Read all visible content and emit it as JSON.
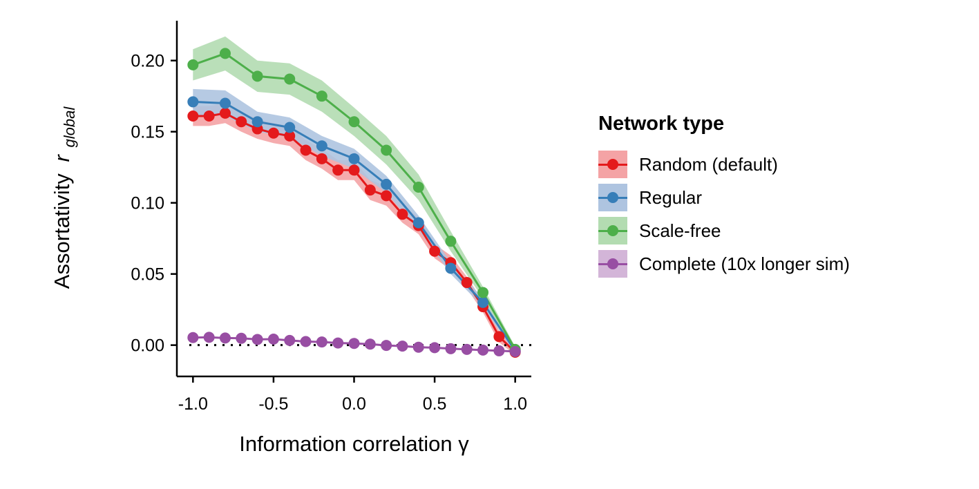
{
  "chart_data": {
    "type": "line",
    "xlabel": "Information correlation γ",
    "ylabel": "Assortativity",
    "ylabel_symbol": "r",
    "ylabel_subscript": "global",
    "xlim": [
      -1.1,
      1.1
    ],
    "ylim": [
      -0.022,
      0.228
    ],
    "x_ticks": [
      -1.0,
      -0.5,
      0.0,
      0.5,
      1.0
    ],
    "x_tick_labels": [
      "-1.0",
      "-0.5",
      "0.0",
      "0.5",
      "1.0"
    ],
    "y_ticks": [
      0.0,
      0.05,
      0.1,
      0.15,
      0.2
    ],
    "y_tick_labels": [
      "0.00",
      "0.05",
      "0.10",
      "0.15",
      "0.20"
    ],
    "reference_line": {
      "y": 0.0,
      "style": "dotted"
    },
    "legend_title": "Network type",
    "legend_position": "right",
    "series": [
      {
        "name": "Random (default)",
        "color": "#e41a1c",
        "band_color": "#f4a3a5",
        "x": [
          -1.0,
          -0.9,
          -0.8,
          -0.7,
          -0.6,
          -0.5,
          -0.4,
          -0.3,
          -0.2,
          -0.1,
          0.0,
          0.1,
          0.2,
          0.3,
          0.4,
          0.5,
          0.6,
          0.7,
          0.8,
          0.9,
          1.0
        ],
        "y": [
          0.161,
          0.161,
          0.163,
          0.157,
          0.152,
          0.149,
          0.147,
          0.137,
          0.131,
          0.123,
          0.123,
          0.109,
          0.105,
          0.092,
          0.084,
          0.066,
          0.058,
          0.044,
          0.027,
          0.006,
          -0.005
        ],
        "lower": [
          0.154,
          0.154,
          0.156,
          0.15,
          0.145,
          0.142,
          0.14,
          0.13,
          0.124,
          0.116,
          0.116,
          0.102,
          0.098,
          0.086,
          0.078,
          0.061,
          0.053,
          0.04,
          0.023,
          0.002,
          -0.007
        ],
        "upper": [
          0.168,
          0.168,
          0.17,
          0.164,
          0.159,
          0.156,
          0.154,
          0.144,
          0.138,
          0.13,
          0.13,
          0.116,
          0.112,
          0.098,
          0.09,
          0.071,
          0.063,
          0.048,
          0.031,
          0.01,
          -0.003
        ]
      },
      {
        "name": "Regular",
        "color": "#377eb8",
        "band_color": "#aec4e0",
        "x": [
          -1.0,
          -0.8,
          -0.6,
          -0.4,
          -0.2,
          0.0,
          0.2,
          0.4,
          0.6,
          0.8,
          1.0
        ],
        "y": [
          0.171,
          0.17,
          0.157,
          0.153,
          0.14,
          0.131,
          0.113,
          0.086,
          0.054,
          0.03,
          -0.004
        ],
        "lower": [
          0.162,
          0.161,
          0.15,
          0.146,
          0.133,
          0.124,
          0.107,
          0.081,
          0.05,
          0.027,
          -0.006
        ],
        "upper": [
          0.18,
          0.179,
          0.164,
          0.16,
          0.147,
          0.138,
          0.119,
          0.091,
          0.058,
          0.033,
          -0.002
        ]
      },
      {
        "name": "Scale-free",
        "color": "#4daf4a",
        "band_color": "#b3dcb1",
        "x": [
          -1.0,
          -0.8,
          -0.6,
          -0.4,
          -0.2,
          0.0,
          0.2,
          0.4,
          0.6,
          0.8,
          1.0
        ],
        "y": [
          0.197,
          0.205,
          0.189,
          0.187,
          0.175,
          0.157,
          0.137,
          0.111,
          0.073,
          0.037,
          -0.003
        ],
        "lower": [
          0.186,
          0.193,
          0.178,
          0.176,
          0.164,
          0.147,
          0.127,
          0.102,
          0.066,
          0.033,
          -0.005
        ],
        "upper": [
          0.208,
          0.217,
          0.2,
          0.198,
          0.186,
          0.167,
          0.147,
          0.12,
          0.08,
          0.041,
          -0.001
        ]
      },
      {
        "name": "Complete (10x longer sim)",
        "color": "#984ea3",
        "band_color": "#d3b5d8",
        "x": [
          -1.0,
          -0.9,
          -0.8,
          -0.7,
          -0.6,
          -0.5,
          -0.4,
          -0.3,
          -0.2,
          -0.1,
          0.0,
          0.1,
          0.2,
          0.3,
          0.4,
          0.5,
          0.6,
          0.7,
          0.8,
          0.9,
          1.0
        ],
        "y": [
          0.0053,
          0.0055,
          0.005,
          0.0048,
          0.004,
          0.0042,
          0.0033,
          0.0025,
          0.0022,
          0.0015,
          0.0012,
          0.0007,
          -0.0002,
          -0.0007,
          -0.0015,
          -0.0018,
          -0.0025,
          -0.003,
          -0.0035,
          -0.004,
          -0.0045
        ],
        "lower": [
          0.0048,
          0.005,
          0.0045,
          0.0043,
          0.0035,
          0.0037,
          0.0028,
          0.002,
          0.0017,
          0.001,
          0.0007,
          0.0002,
          -0.0007,
          -0.0012,
          -0.002,
          -0.0023,
          -0.003,
          -0.0035,
          -0.004,
          -0.0045,
          -0.005
        ],
        "upper": [
          0.0058,
          0.006,
          0.0055,
          0.0053,
          0.0045,
          0.0047,
          0.0038,
          0.003,
          0.0027,
          0.002,
          0.0017,
          0.0012,
          0.0003,
          -0.0002,
          -0.001,
          -0.0013,
          -0.002,
          -0.0025,
          -0.003,
          -0.0035,
          -0.004
        ]
      }
    ]
  }
}
